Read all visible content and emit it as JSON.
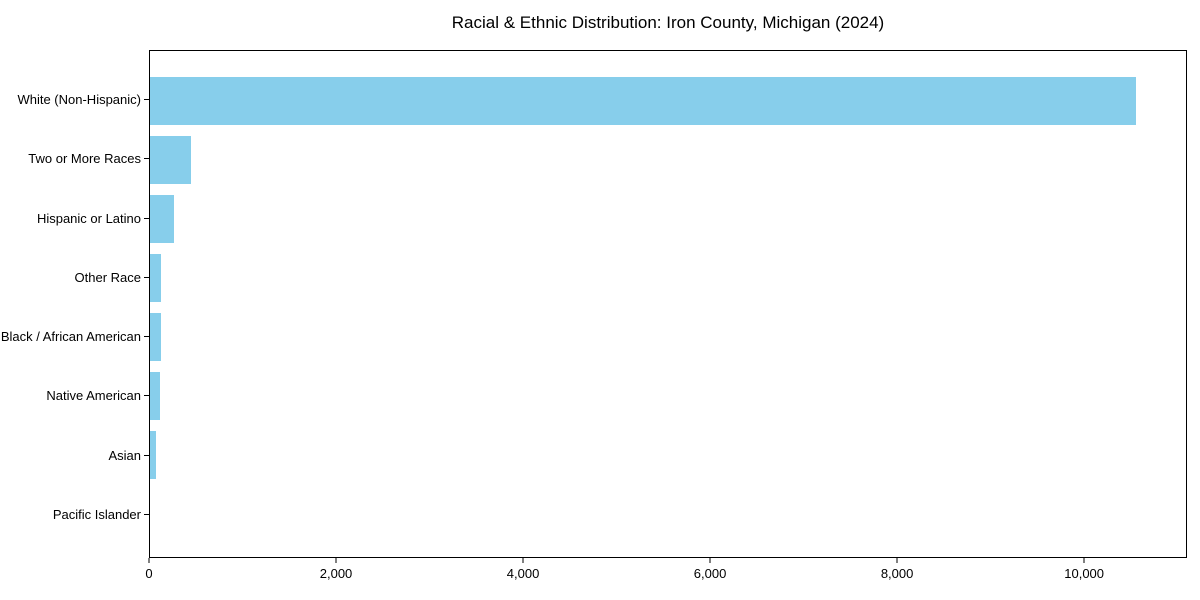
{
  "chart_data": {
    "type": "bar",
    "orientation": "horizontal",
    "title": "Racial & Ethnic Distribution: Iron County, Michigan (2024)",
    "xlabel": "",
    "ylabel": "",
    "categories": [
      "White (Non-Hispanic)",
      "Two or More Races",
      "Hispanic or Latino",
      "Other Race",
      "Black / African American",
      "Native American",
      "Asian",
      "Pacific Islander"
    ],
    "values": [
      10560,
      435,
      260,
      120,
      118,
      105,
      65,
      0
    ],
    "xlim": [
      0,
      11100
    ],
    "x_ticks": [
      0,
      2000,
      4000,
      6000,
      8000,
      10000
    ],
    "x_tick_labels": [
      "0",
      "2,000",
      "4,000",
      "6,000",
      "8,000",
      "10,000"
    ],
    "grid": false,
    "legend": null,
    "bar_color": "#87CEEB",
    "spine_color": "#000000",
    "background_color": "#ffffff",
    "text_color": "#000000"
  }
}
